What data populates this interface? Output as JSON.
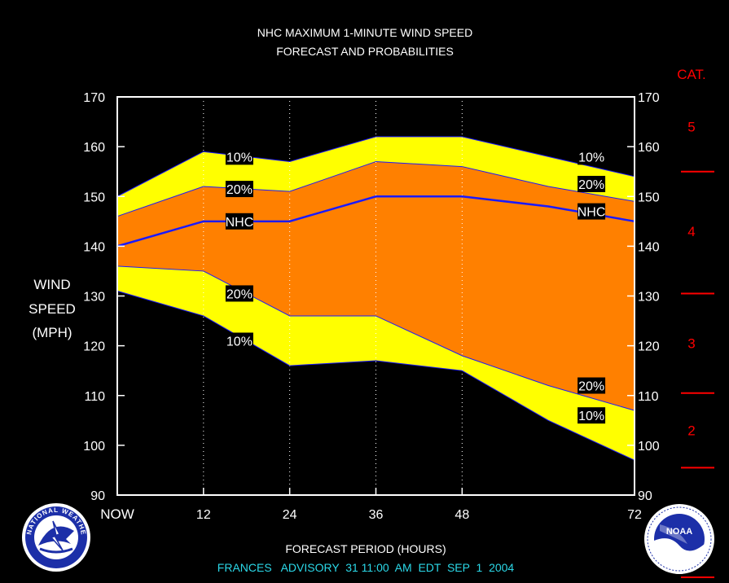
{
  "header": {
    "title_line1": "NHC MAXIMUM 1-MINUTE WIND SPEED",
    "title_line2": "FORECAST AND PROBABILITIES"
  },
  "axes": {
    "ylabel_lines": [
      "WIND",
      "SPEED",
      "(MPH)"
    ],
    "xlabel": "FORECAST PERIOD (HOURS)",
    "category_header": "CAT."
  },
  "footer": {
    "advisory": "FRANCES   ADVISORY  31 11:00  AM  EDT  SEP  1  2004"
  },
  "logos": {
    "nws_text": "NATIONAL WEATHER SERVICE",
    "noaa_text": "NOAA"
  },
  "colors": {
    "band_outer": "#ffff00",
    "band_inner": "#ff8000",
    "nhc_line": "#1a1aff",
    "category_text": "#ff0000",
    "advisory_text": "#2bd8e8"
  },
  "chart_data": {
    "type": "area",
    "title": "NHC MAXIMUM 1-MINUTE WIND SPEED FORECAST AND PROBABILITIES",
    "xlabel": "FORECAST PERIOD (HOURS)",
    "ylabel": "WIND SPEED (MPH)",
    "xlim": [
      0,
      72
    ],
    "ylim": [
      90,
      170
    ],
    "x_ticks": [
      0,
      12,
      24,
      36,
      48,
      72
    ],
    "x_tick_labels": [
      "NOW",
      "12",
      "24",
      "36",
      "48",
      "72"
    ],
    "y_ticks": [
      90,
      100,
      110,
      120,
      130,
      140,
      150,
      160,
      170
    ],
    "grid": "vertical dotted at 12, 24, 36, 48",
    "x": [
      0,
      12,
      24,
      36,
      48,
      60,
      72
    ],
    "series": [
      {
        "name": "10%",
        "values": [
          150,
          159,
          157,
          162,
          162,
          158,
          154
        ]
      },
      {
        "name": "20%",
        "values": [
          146,
          152,
          151,
          157,
          156,
          152,
          149
        ]
      },
      {
        "name": "NHC",
        "values": [
          140,
          145,
          145,
          150,
          150,
          148,
          145
        ]
      },
      {
        "name": "20%",
        "values": [
          136,
          135,
          126,
          126,
          118,
          112,
          107
        ]
      },
      {
        "name": "10%",
        "values": [
          131,
          126,
          116,
          117,
          115,
          105,
          97
        ]
      }
    ],
    "line_labels": [
      {
        "text": "10%",
        "x": 17,
        "y": 158
      },
      {
        "text": "20%",
        "x": 17,
        "y": 151.5
      },
      {
        "text": "NHC",
        "x": 17,
        "y": 145
      },
      {
        "text": "20%",
        "x": 17,
        "y": 130.5
      },
      {
        "text": "10%",
        "x": 17,
        "y": 121
      },
      {
        "text": "10%",
        "x": 66,
        "y": 158
      },
      {
        "text": "20%",
        "x": 66,
        "y": 152.5
      },
      {
        "text": "NHC",
        "x": 66,
        "y": 147
      },
      {
        "text": "20%",
        "x": 66,
        "y": 112
      },
      {
        "text": "10%",
        "x": 66,
        "y": 106
      }
    ],
    "categories_right": [
      {
        "label": "5",
        "y": 164
      },
      {
        "label": "4",
        "y": 143
      },
      {
        "label": "3",
        "y": 120.5
      },
      {
        "label": "2",
        "y": 103
      }
    ],
    "category_thresholds": [
      155,
      130.5,
      110.5,
      95.5
    ]
  }
}
